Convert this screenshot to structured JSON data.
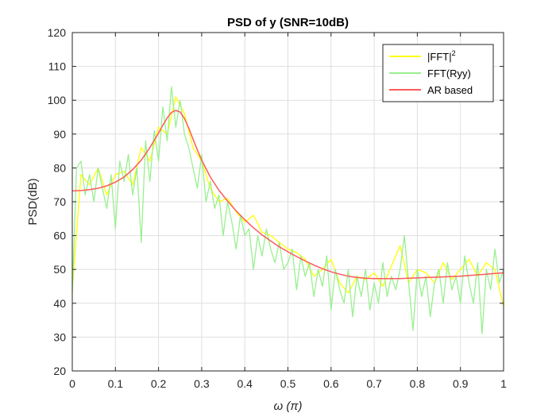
{
  "chart_data": {
    "type": "line",
    "title": "PSD of y  (SNR=10dB)",
    "xlabel": "ω (π)",
    "ylabel": "PSD(dB)",
    "xlim": [
      0,
      1
    ],
    "ylim": [
      20,
      120
    ],
    "xticks": [
      0,
      0.1,
      0.2,
      0.3,
      0.4,
      0.5,
      0.6,
      0.7,
      0.8,
      0.9,
      1
    ],
    "xtick_labels": [
      "0",
      "0.1",
      "0.2",
      "0.3",
      "0.4",
      "0.5",
      "0.6",
      "0.7",
      "0.8",
      "0.9",
      "1"
    ],
    "yticks": [
      20,
      30,
      40,
      50,
      60,
      70,
      80,
      90,
      100,
      110,
      120
    ],
    "ytick_labels": [
      "20",
      "30",
      "40",
      "50",
      "60",
      "70",
      "80",
      "90",
      "100",
      "110",
      "120"
    ],
    "grid": true,
    "legend_position": "top-right",
    "series": [
      {
        "name": "|FFT|²",
        "name_base": "|FFT|",
        "name_sup": "2",
        "color": "#ffff00",
        "x": [
          0,
          0.02,
          0.04,
          0.06,
          0.08,
          0.1,
          0.12,
          0.14,
          0.16,
          0.18,
          0.2,
          0.22,
          0.24,
          0.26,
          0.28,
          0.3,
          0.32,
          0.34,
          0.36,
          0.38,
          0.4,
          0.42,
          0.44,
          0.46,
          0.48,
          0.5,
          0.52,
          0.54,
          0.56,
          0.58,
          0.6,
          0.62,
          0.64,
          0.66,
          0.68,
          0.7,
          0.72,
          0.74,
          0.76,
          0.78,
          0.8,
          0.82,
          0.84,
          0.86,
          0.88,
          0.9,
          0.92,
          0.94,
          0.96,
          0.98,
          1
        ],
        "y": [
          44,
          78,
          75,
          80,
          72,
          78,
          79,
          75,
          86,
          82,
          92,
          90,
          101,
          96,
          86,
          82,
          74,
          70,
          71,
          67,
          64,
          66,
          61,
          60,
          58,
          56,
          55,
          53,
          48,
          50,
          53,
          46,
          43,
          48,
          47,
          49,
          45,
          51,
          57,
          46,
          50,
          49,
          46,
          52,
          47,
          50,
          53,
          48,
          52,
          50,
          39
        ]
      },
      {
        "name": "FFT(Ryy)",
        "color": "#99f090",
        "x": [
          0,
          0.01,
          0.02,
          0.03,
          0.04,
          0.05,
          0.06,
          0.07,
          0.08,
          0.09,
          0.1,
          0.11,
          0.12,
          0.13,
          0.14,
          0.15,
          0.16,
          0.17,
          0.18,
          0.19,
          0.2,
          0.21,
          0.22,
          0.23,
          0.24,
          0.25,
          0.26,
          0.27,
          0.28,
          0.29,
          0.3,
          0.31,
          0.32,
          0.33,
          0.34,
          0.35,
          0.36,
          0.37,
          0.38,
          0.39,
          0.4,
          0.41,
          0.42,
          0.43,
          0.44,
          0.45,
          0.46,
          0.47,
          0.48,
          0.49,
          0.5,
          0.51,
          0.52,
          0.53,
          0.54,
          0.55,
          0.56,
          0.57,
          0.58,
          0.59,
          0.6,
          0.61,
          0.62,
          0.63,
          0.64,
          0.65,
          0.66,
          0.67,
          0.68,
          0.69,
          0.7,
          0.71,
          0.72,
          0.73,
          0.74,
          0.75,
          0.76,
          0.77,
          0.78,
          0.79,
          0.8,
          0.81,
          0.82,
          0.83,
          0.84,
          0.85,
          0.86,
          0.87,
          0.88,
          0.89,
          0.9,
          0.91,
          0.92,
          0.93,
          0.94,
          0.95,
          0.96,
          0.97,
          0.98,
          0.99,
          1
        ],
        "y": [
          43,
          80,
          82,
          72,
          78,
          70,
          80,
          74,
          68,
          78,
          62,
          82,
          76,
          84,
          72,
          80,
          58,
          88,
          76,
          91,
          82,
          98,
          88,
          104,
          92,
          100,
          90,
          86,
          80,
          74,
          84,
          70,
          76,
          68,
          72,
          60,
          70,
          64,
          56,
          66,
          60,
          62,
          50,
          60,
          54,
          62,
          56,
          52,
          58,
          50,
          52,
          56,
          44,
          54,
          48,
          52,
          42,
          50,
          45,
          54,
          38,
          50,
          44,
          40,
          50,
          36,
          48,
          42,
          50,
          38,
          46,
          40,
          52,
          42,
          48,
          44,
          50,
          60,
          46,
          32,
          50,
          42,
          48,
          36,
          46,
          50,
          40,
          52,
          44,
          48,
          40,
          54,
          46,
          40,
          52,
          31,
          50,
          44,
          56,
          46,
          50
        ]
      },
      {
        "name": "AR based",
        "color": "#ff5a5a",
        "x": [
          0,
          0.02,
          0.04,
          0.06,
          0.08,
          0.1,
          0.12,
          0.14,
          0.16,
          0.18,
          0.2,
          0.21,
          0.22,
          0.23,
          0.24,
          0.25,
          0.26,
          0.27,
          0.28,
          0.29,
          0.3,
          0.32,
          0.34,
          0.36,
          0.38,
          0.4,
          0.42,
          0.44,
          0.46,
          0.48,
          0.5,
          0.52,
          0.54,
          0.56,
          0.58,
          0.6,
          0.62,
          0.64,
          0.66,
          0.68,
          0.7,
          0.72,
          0.74,
          0.76,
          0.78,
          0.8,
          0.82,
          0.84,
          0.86,
          0.88,
          0.9,
          0.92,
          0.94,
          0.96,
          0.98,
          1
        ],
        "y": [
          73.2,
          73.3,
          73.6,
          74,
          74.7,
          75.8,
          77.3,
          79.5,
          82.3,
          86,
          90.3,
          92.6,
          94.8,
          96.4,
          97,
          96.5,
          94.6,
          91.8,
          88.5,
          85.3,
          82.3,
          77.3,
          73.4,
          70.2,
          67.3,
          64.7,
          62.3,
          60.2,
          58.4,
          56.7,
          55.2,
          53.8,
          52.5,
          51.3,
          50.2,
          49.3,
          48.6,
          48,
          47.6,
          47.4,
          47.3,
          47.3,
          47.3,
          47.3,
          47.4,
          47.5,
          47.6,
          47.7,
          47.8,
          47.9,
          48,
          48.2,
          48.4,
          48.6,
          48.8,
          49
        ]
      }
    ]
  }
}
